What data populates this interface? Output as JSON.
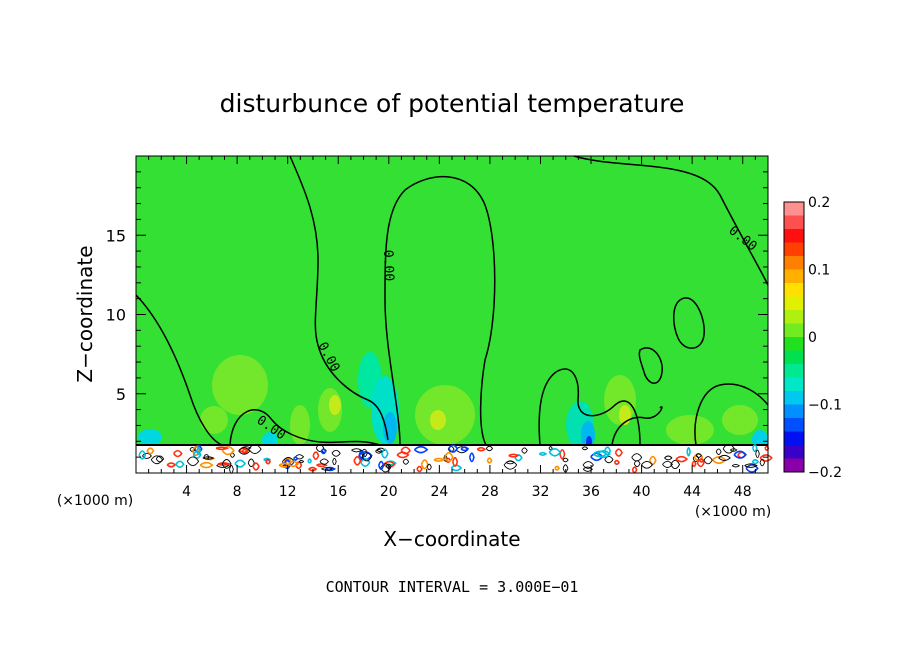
{
  "chart_data": {
    "type": "heatmap",
    "title": "disturbunce of potential temperature",
    "xlabel": "X−coordinate",
    "ylabel": "Z−coordinate",
    "x_unit_left": "(×1000 m)",
    "x_unit_right": "(×1000 m)",
    "xlim": [
      0,
      50
    ],
    "ylim": [
      0,
      20
    ],
    "x_ticks": [
      4,
      8,
      12,
      16,
      20,
      24,
      28,
      32,
      36,
      40,
      44,
      48
    ],
    "y_ticks": [
      5,
      10,
      15
    ],
    "colorbar": {
      "range": [
        -0.2,
        0.2
      ],
      "tick_labels": [
        "0.2",
        "0.1",
        "0",
        "−0.1",
        "−0.2"
      ],
      "tick_values": [
        0.2,
        0.1,
        0,
        -0.1,
        -0.2
      ],
      "colors": [
        "#8a00a8",
        "#3a00c8",
        "#0010f0",
        "#0050ff",
        "#0090ff",
        "#00c8f0",
        "#00e8c8",
        "#00e890",
        "#00e050",
        "#20e020",
        "#70ec20",
        "#b0f010",
        "#e0f000",
        "#ffe000",
        "#ffb000",
        "#ff8000",
        "#ff4000",
        "#ff1010",
        "#ff5050",
        "#ff9090"
      ]
    },
    "background_value": 0,
    "contour_label": "0.00",
    "contour_interval_text": "CONTOUR INTERVAL = 3.000E−01"
  }
}
